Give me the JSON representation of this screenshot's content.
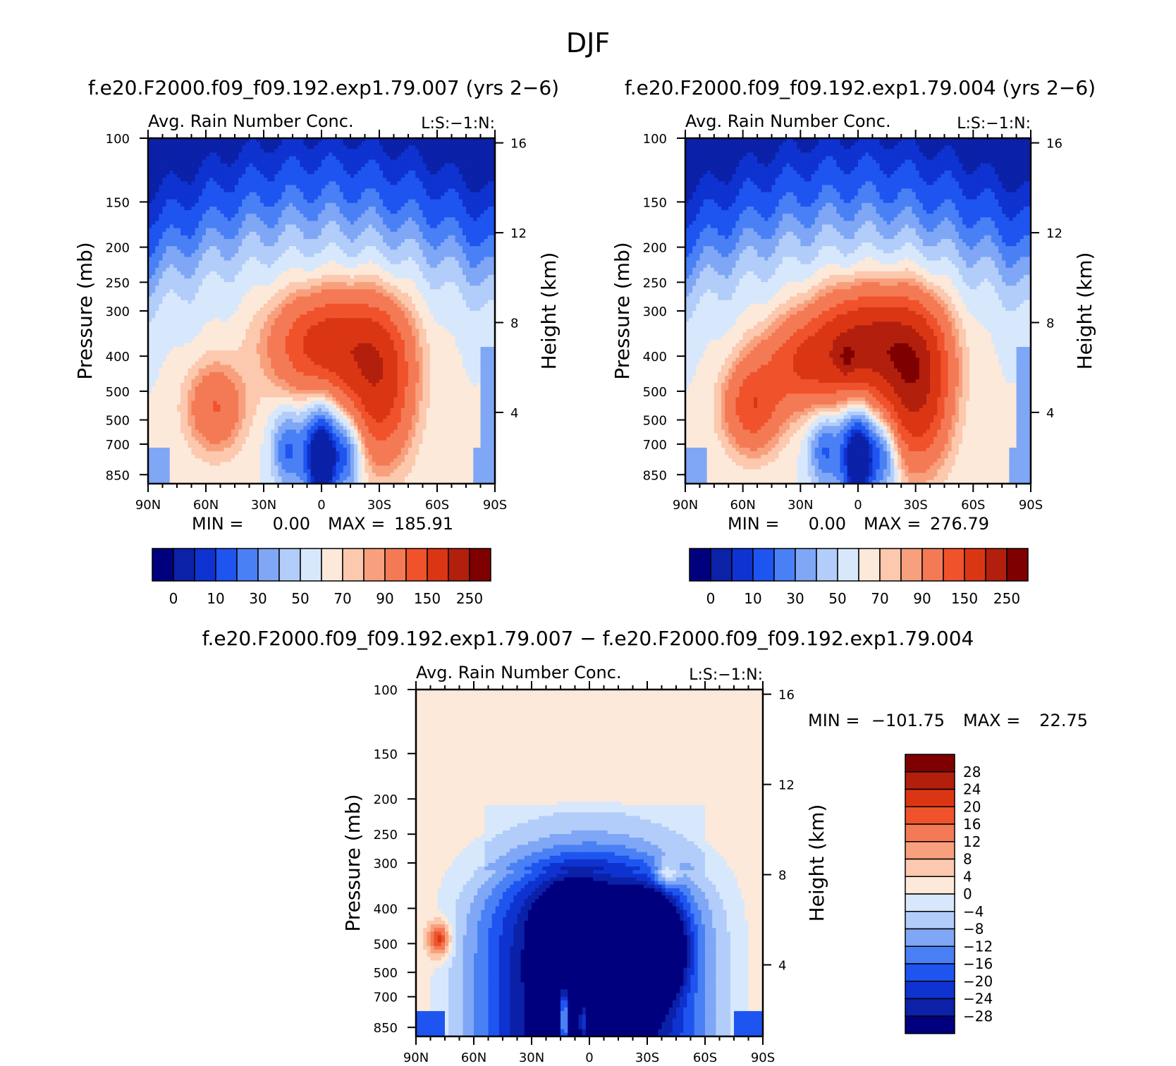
{
  "figure_title": "DJF",
  "chart_data": [
    {
      "type": "heatmap",
      "id": "panel1",
      "title": "f.e20.F2000.f09_f09.192.exp1.79.007 (yrs 2−6)",
      "subtitle": "Avg. Rain Number Conc.",
      "units_label": "L:S:−1:N:",
      "ylabel": "Pressure (mb)",
      "ylabel_right": "Height (km)",
      "x_ticks": [
        "90N",
        "60N",
        "30N",
        "0",
        "30S",
        "60S",
        "90S"
      ],
      "y_ticks": [
        "100",
        "150",
        "200",
        "250",
        "300",
        "400",
        "500",
        "500",
        "700",
        "850"
      ],
      "y_ticks_right": [
        "16",
        "12",
        "8",
        "4"
      ],
      "stats": {
        "min_label": "MIN =",
        "min": "0.00",
        "max_label": "MAX =",
        "max": "185.91"
      },
      "colorbar_labels": [
        "0",
        "10",
        "30",
        "50",
        "70",
        "90",
        "150",
        "250"
      ],
      "peak": 185.91
    },
    {
      "type": "heatmap",
      "id": "panel2",
      "title": "f.e20.F2000.f09_f09.192.exp1.79.004 (yrs 2−6)",
      "subtitle": "Avg. Rain Number Conc.",
      "units_label": "L:S:−1:N:",
      "ylabel": "Pressure (mb)",
      "ylabel_right": "Height (km)",
      "x_ticks": [
        "90N",
        "60N",
        "30N",
        "0",
        "30S",
        "60S",
        "90S"
      ],
      "y_ticks": [
        "100",
        "150",
        "200",
        "250",
        "300",
        "400",
        "500",
        "500",
        "700",
        "850"
      ],
      "y_ticks_right": [
        "16",
        "12",
        "8",
        "4"
      ],
      "stats": {
        "min_label": "MIN =",
        "min": "0.00",
        "max_label": "MAX =",
        "max": "276.79"
      },
      "colorbar_labels": [
        "0",
        "10",
        "30",
        "50",
        "70",
        "90",
        "150",
        "250"
      ],
      "peak": 276.79
    },
    {
      "type": "heatmap",
      "id": "panel3",
      "title": "f.e20.F2000.f09_f09.192.exp1.79.007 − f.e20.F2000.f09_f09.192.exp1.79.004",
      "subtitle": "Avg. Rain Number Conc.",
      "units_label": "L:S:−1:N:",
      "ylabel": "Pressure (mb)",
      "ylabel_right": "Height (km)",
      "x_ticks": [
        "90N",
        "60N",
        "30N",
        "0",
        "30S",
        "60S",
        "90S"
      ],
      "y_ticks": [
        "100",
        "150",
        "200",
        "250",
        "300",
        "400",
        "500",
        "500",
        "700",
        "850"
      ],
      "y_ticks_right": [
        "16",
        "12",
        "8",
        "4"
      ],
      "stats": {
        "min_label": "MIN =",
        "min": "−101.75",
        "max_label": "MAX =",
        "max": "22.75"
      },
      "colorbar_labels": [
        "28",
        "24",
        "20",
        "16",
        "12",
        "8",
        "4",
        "0",
        "−4",
        "−8",
        "−12",
        "−16",
        "−20",
        "−24",
        "−28"
      ]
    }
  ],
  "colors": {
    "abs_palette": [
      "#00007f",
      "#0a21a8",
      "#0f33d0",
      "#1e55f0",
      "#4a80f5",
      "#7fa7f6",
      "#b2cdf9",
      "#d8e8fc",
      "#fde9d9",
      "#fcc8ae",
      "#f8a07d",
      "#f47a55",
      "#f0522c",
      "#db3614",
      "#b21f0d",
      "#7f0000"
    ],
    "diff_palette": [
      "#7f0000",
      "#b21f0d",
      "#db3614",
      "#f0522c",
      "#f47a55",
      "#f8a07d",
      "#fcc8ae",
      "#fde9d9",
      "#d8e8fc",
      "#b2cdf9",
      "#7fa7f6",
      "#4a80f5",
      "#1e55f0",
      "#0f33d0",
      "#0a21a8",
      "#00007f"
    ]
  }
}
